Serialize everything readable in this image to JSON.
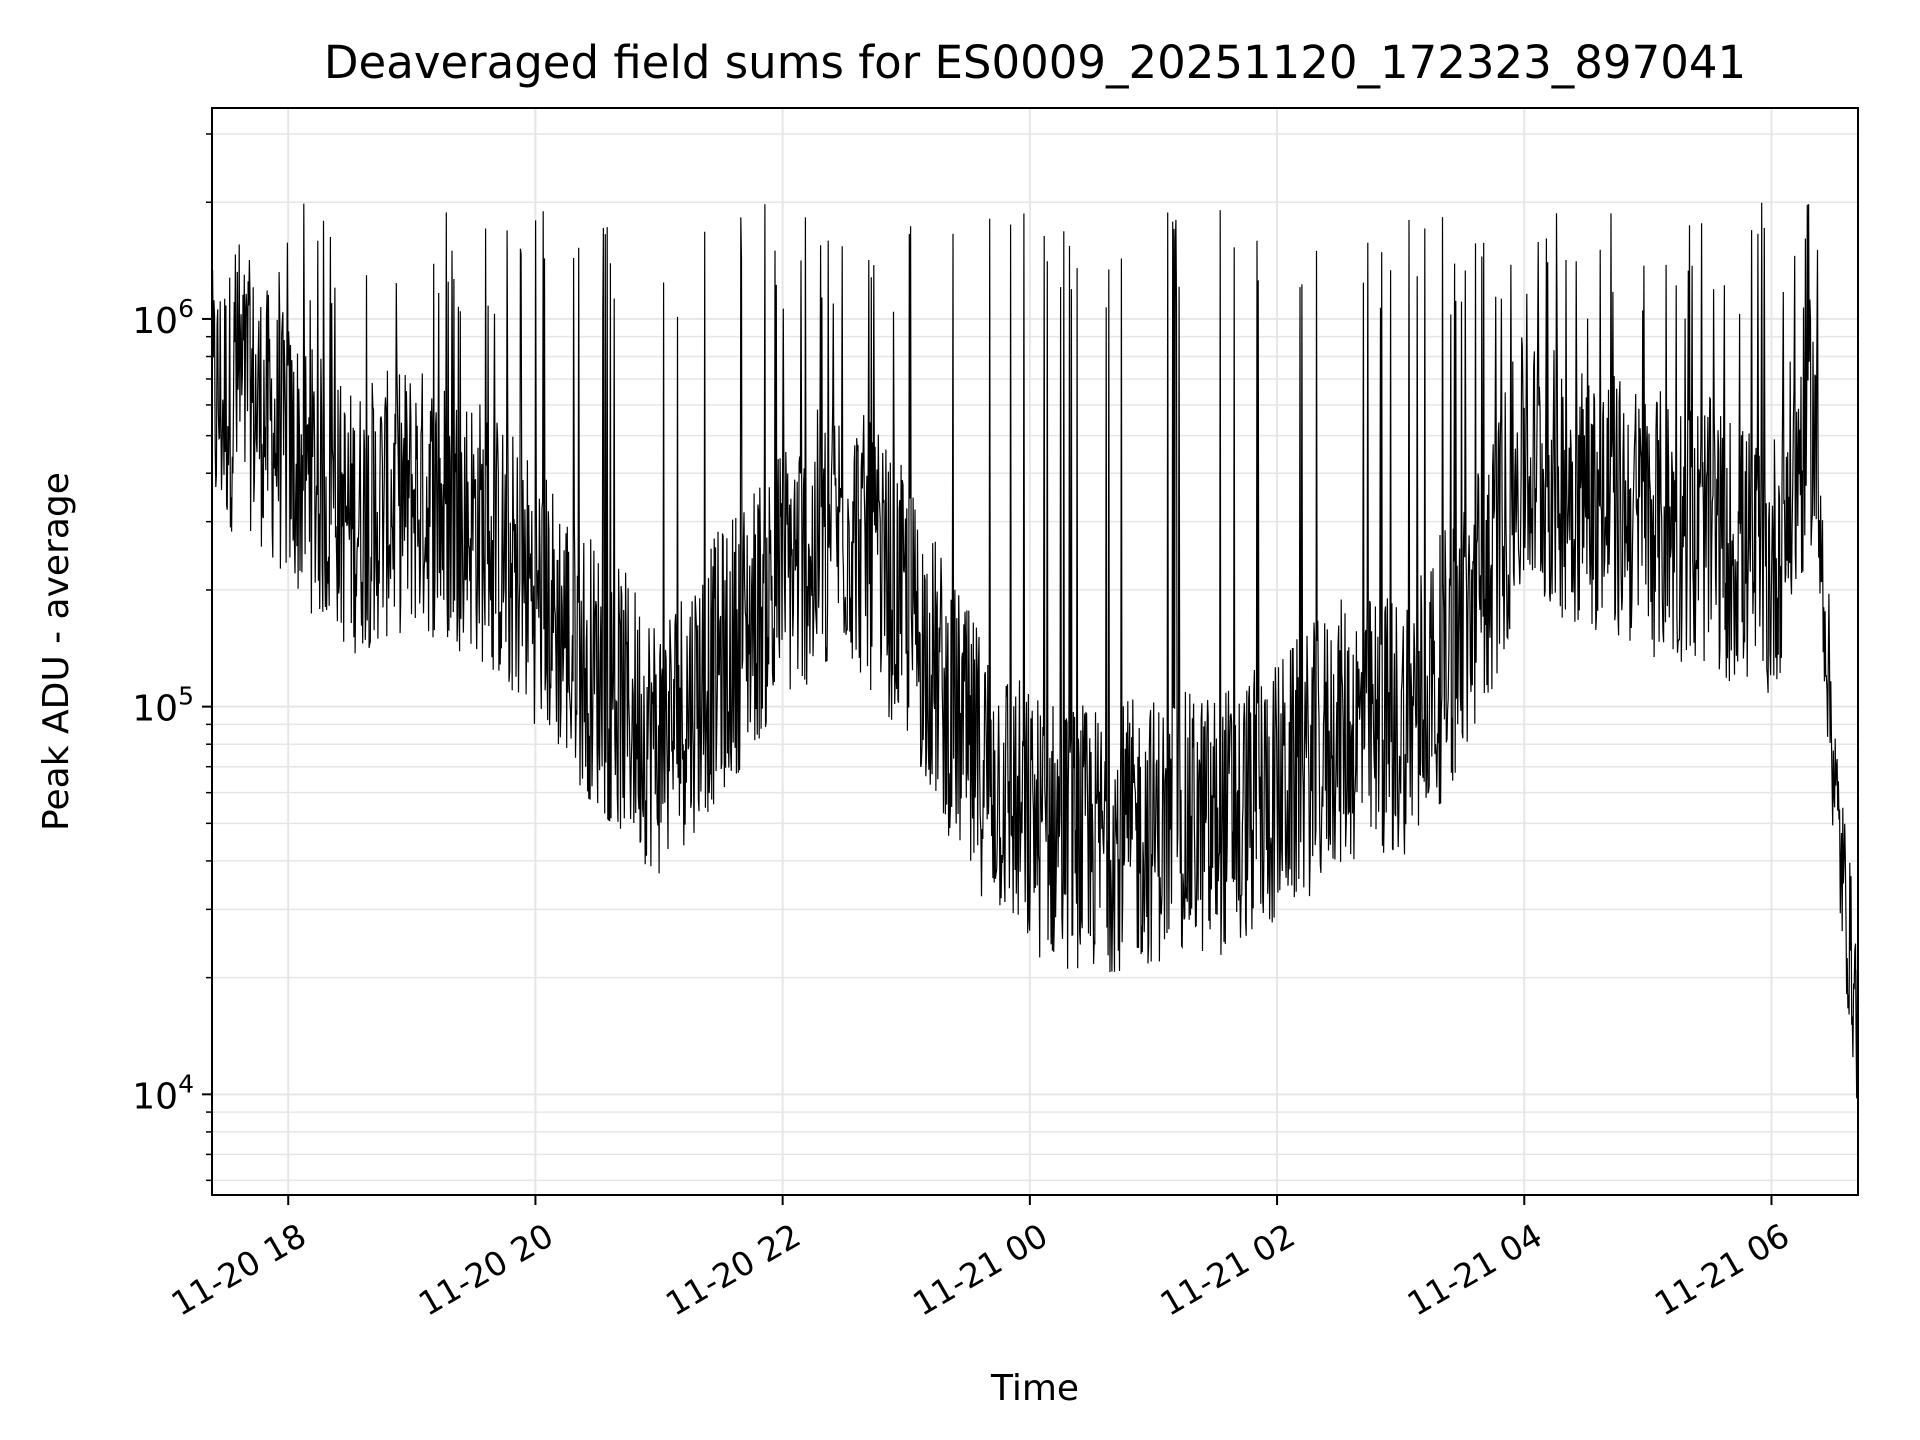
{
  "chart_data": {
    "type": "line",
    "title": "Deaveraged field sums for ES0009_20251120_172323_897041",
    "xlabel": "Time",
    "ylabel": "Peak ADU - average",
    "yscale": "log",
    "ylim": [
      5500,
      3500000
    ],
    "xlim": [
      "2025-11-20 17:23",
      "2025-11-21 06:42"
    ],
    "x_ticks": [
      {
        "t": "2025-11-20 18:00",
        "label": "11-20 18"
      },
      {
        "t": "2025-11-20 20:00",
        "label": "11-20 20"
      },
      {
        "t": "2025-11-20 22:00",
        "label": "11-20 22"
      },
      {
        "t": "2025-11-21 00:00",
        "label": "11-21 00"
      },
      {
        "t": "2025-11-21 02:00",
        "label": "11-21 02"
      },
      {
        "t": "2025-11-21 04:00",
        "label": "11-21 04"
      },
      {
        "t": "2025-11-21 06:00",
        "label": "11-21 06"
      }
    ],
    "y_ticks": [
      {
        "value": 10000,
        "base": "10",
        "exp": "4"
      },
      {
        "value": 100000,
        "base": "10",
        "exp": "5"
      },
      {
        "value": 1000000,
        "base": "10",
        "exp": "6"
      }
    ],
    "grid": true,
    "line_color": "#000000",
    "grid_color": "#e6e6e6",
    "series": [
      {
        "x": [
          "2025-11-20 17:23",
          "2025-11-20 17:40",
          "2025-11-20 18:00",
          "2025-11-20 18:30",
          "2025-11-20 19:00",
          "2025-11-20 19:30",
          "2025-11-20 20:00",
          "2025-11-20 20:30",
          "2025-11-20 21:00",
          "2025-11-20 21:30",
          "2025-11-20 22:00",
          "2025-11-20 22:30",
          "2025-11-20 23:00",
          "2025-11-20 23:30",
          "2025-11-21 00:00",
          "2025-11-21 00:30",
          "2025-11-21 01:00",
          "2025-11-21 01:30",
          "2025-11-21 02:00",
          "2025-11-21 02:30",
          "2025-11-21 03:00",
          "2025-11-21 03:30",
          "2025-11-21 04:00",
          "2025-11-21 04:30",
          "2025-11-21 05:00",
          "2025-11-21 05:30",
          "2025-11-21 06:00",
          "2025-11-21 06:20",
          "2025-11-21 06:32",
          "2025-11-21 06:42"
        ],
        "y": [
          600000,
          650000,
          450000,
          300000,
          350000,
          300000,
          200000,
          120000,
          80000,
          130000,
          220000,
          300000,
          180000,
          80000,
          50000,
          45000,
          48000,
          50000,
          60000,
          85000,
          90000,
          150000,
          420000,
          350000,
          300000,
          280000,
          220000,
          600000,
          50000,
          15000
        ]
      }
    ]
  }
}
